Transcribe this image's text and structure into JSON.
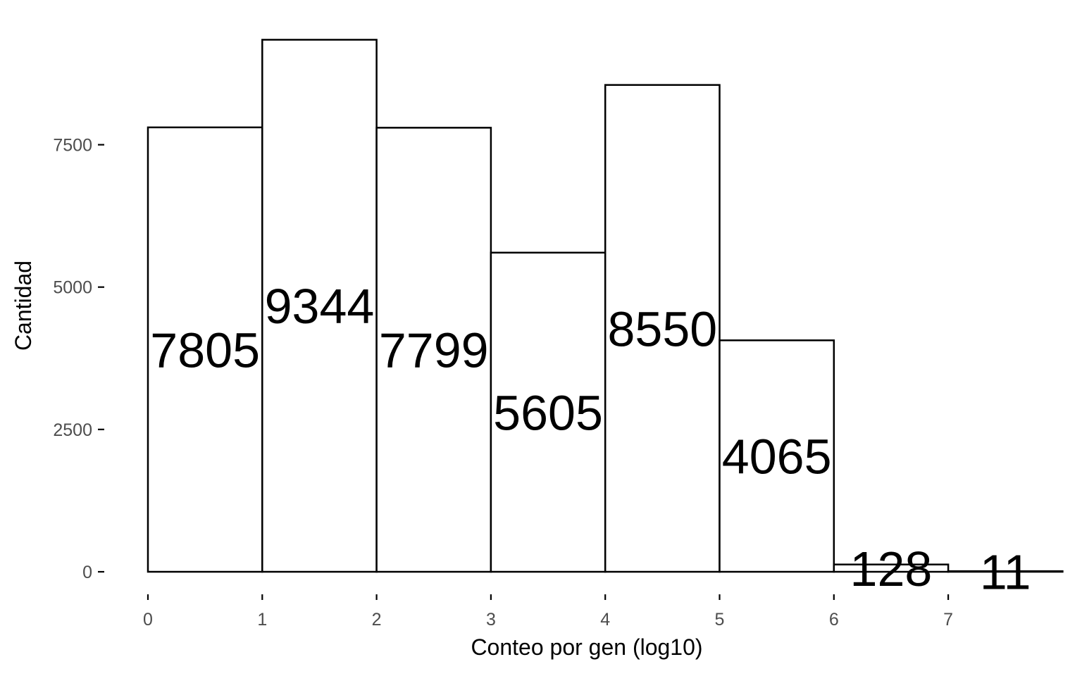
{
  "chart_data": {
    "type": "bar",
    "title": "",
    "xlabel": "Conteo por gen (log10)",
    "ylabel": "Cantidad",
    "x_ticks": [
      "0",
      "1",
      "2",
      "3",
      "4",
      "5",
      "6",
      "7"
    ],
    "y_ticks": [
      "0",
      "2500",
      "5000",
      "7500"
    ],
    "xlim": [
      0,
      7
    ],
    "ylim": [
      0,
      9344
    ],
    "bins": [
      {
        "start": 0,
        "end": 1,
        "value": 7805,
        "label": "7805"
      },
      {
        "start": 1,
        "end": 2,
        "value": 9344,
        "label": "9344"
      },
      {
        "start": 2,
        "end": 3,
        "value": 7799,
        "label": "7799"
      },
      {
        "start": 3,
        "end": 4,
        "value": 5605,
        "label": "5605"
      },
      {
        "start": 4,
        "end": 5,
        "value": 8550,
        "label": "8550"
      },
      {
        "start": 5,
        "end": 6,
        "value": 4065,
        "label": "4065"
      },
      {
        "start": 6,
        "end": 7,
        "value": 128,
        "label": "128"
      },
      {
        "start": 7,
        "end": 8,
        "value": 11,
        "label": "11"
      }
    ],
    "colors": {
      "bar_fill": "#ffffff",
      "bar_stroke": "#000000",
      "axis": "#000000",
      "tick_text": "#4d4d4d"
    },
    "grid": false,
    "legend": "none"
  }
}
